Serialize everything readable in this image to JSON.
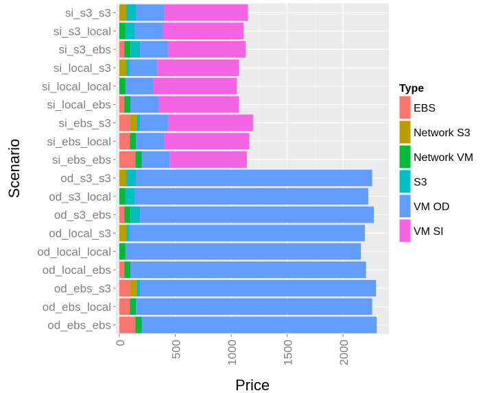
{
  "chart_data": {
    "type": "bar",
    "orientation": "horizontal",
    "stacked": true,
    "xlabel": "Price",
    "ylabel": "Scenario",
    "xlim": [
      -30,
      2410
    ],
    "xticks": [
      0,
      500,
      1000,
      1500,
      2000
    ],
    "tick_labels": [
      "0",
      "500",
      "1000",
      "1500",
      "2000"
    ],
    "categories": [
      "si_s3_s3",
      "si_s3_local",
      "si_s3_ebs",
      "si_local_s3",
      "si_local_local",
      "si_local_ebs",
      "si_ebs_s3",
      "si_ebs_local",
      "si_ebs_ebs",
      "od_s3_s3",
      "od_s3_local",
      "od_s3_ebs",
      "od_local_s3",
      "od_local_local",
      "od_local_ebs",
      "od_ebs_s3",
      "od_ebs_local",
      "od_ebs_ebs"
    ],
    "series": [
      {
        "name": "EBS",
        "color": "#F8766D",
        "values": [
          0,
          0,
          45,
          0,
          0,
          45,
          95,
          95,
          145,
          0,
          0,
          45,
          0,
          0,
          45,
          95,
          95,
          145
        ]
      },
      {
        "name": "Network S3",
        "color": "#B79F00",
        "values": [
          65,
          0,
          0,
          65,
          0,
          0,
          65,
          0,
          0,
          65,
          0,
          0,
          65,
          0,
          0,
          65,
          0,
          0
        ]
      },
      {
        "name": "Network VM",
        "color": "#00BA38",
        "values": [
          0,
          55,
          55,
          0,
          55,
          55,
          0,
          55,
          55,
          0,
          55,
          55,
          0,
          55,
          55,
          0,
          55,
          55
        ]
      },
      {
        "name": "S3",
        "color": "#00BFC4",
        "values": [
          85,
          85,
          85,
          25,
          0,
          0,
          25,
          0,
          0,
          85,
          85,
          85,
          25,
          0,
          0,
          25,
          0,
          0
        ]
      },
      {
        "name": "VM OD",
        "color": "#619CFF",
        "values": [
          250,
          250,
          250,
          250,
          250,
          250,
          250,
          250,
          250,
          2110,
          2085,
          2090,
          2105,
          2105,
          2105,
          2110,
          2110,
          2100
        ]
      },
      {
        "name": "VM SI",
        "color": "#F564E3",
        "values": [
          750,
          720,
          695,
          730,
          745,
          720,
          760,
          762,
          690,
          0,
          0,
          0,
          0,
          0,
          0,
          0,
          0,
          0
        ]
      }
    ],
    "legend": {
      "title": "Type",
      "position": "right"
    },
    "grid": true
  }
}
